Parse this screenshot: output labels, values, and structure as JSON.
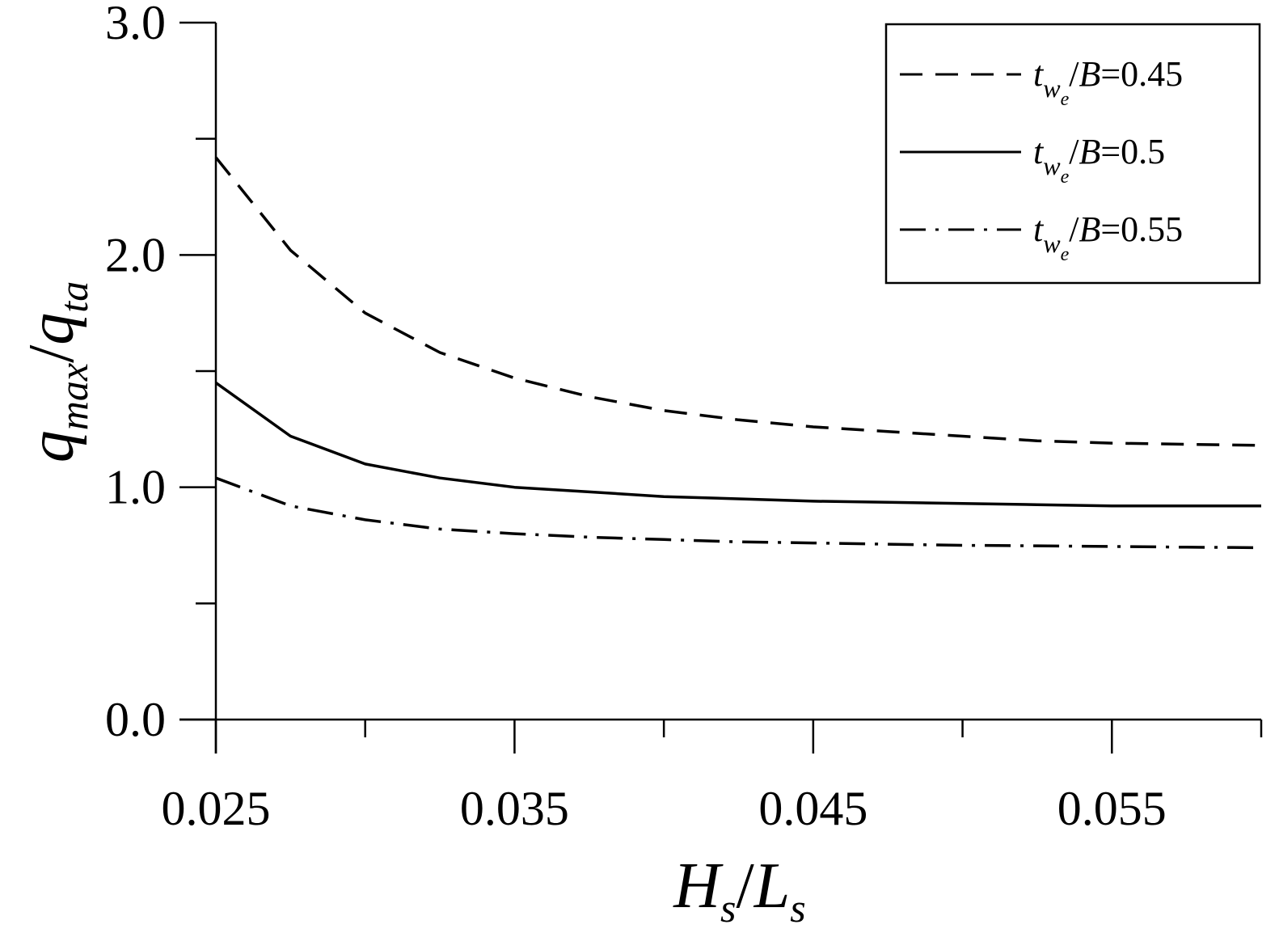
{
  "chart_data": {
    "type": "line",
    "title": "",
    "xlabel": {
      "main": "H",
      "sub1": "s",
      "slash": "/",
      "main2": "L",
      "sub2": "s"
    },
    "ylabel": {
      "main": "q",
      "sub1": "max",
      "slash": "/",
      "main2": "q",
      "sub2": "ta"
    },
    "xlim": [
      0.025,
      0.06
    ],
    "ylim": [
      0.0,
      3.0
    ],
    "x_major_ticks": [
      0.025,
      0.035,
      0.045,
      0.055
    ],
    "x_minor_ticks": [
      0.03,
      0.04,
      0.05,
      0.06
    ],
    "x_tick_labels": [
      "0.025",
      "0.035",
      "0.045",
      "0.055"
    ],
    "y_major_ticks": [
      0.0,
      1.0,
      2.0,
      3.0
    ],
    "y_minor_ticks": [
      0.5,
      1.5,
      2.5
    ],
    "y_tick_labels": [
      "0.0",
      "1.0",
      "2.0",
      "3.0"
    ],
    "grid": false,
    "legend_position": "top-right",
    "x": [
      0.025,
      0.0275,
      0.03,
      0.0325,
      0.035,
      0.0375,
      0.04,
      0.0425,
      0.045,
      0.0475,
      0.05,
      0.0525,
      0.055,
      0.0575,
      0.06
    ],
    "series": [
      {
        "legend": {
          "t": "t",
          "w": "w",
          "e": "e",
          "slash": "/",
          "B": "B",
          "value": "=0.45"
        },
        "style": "dashed",
        "values": [
          2.42,
          2.02,
          1.75,
          1.58,
          1.47,
          1.39,
          1.33,
          1.29,
          1.26,
          1.24,
          1.22,
          1.2,
          1.19,
          1.185,
          1.18
        ]
      },
      {
        "legend": {
          "t": "t",
          "w": "w",
          "e": "e",
          "slash": "/",
          "B": "B",
          "value": "=0.5"
        },
        "style": "solid",
        "values": [
          1.45,
          1.22,
          1.1,
          1.04,
          1.0,
          0.98,
          0.96,
          0.95,
          0.94,
          0.935,
          0.93,
          0.925,
          0.92,
          0.92,
          0.92
        ]
      },
      {
        "legend": {
          "t": "t",
          "w": "w",
          "e": "e",
          "slash": "/",
          "B": "B",
          "value": "=0.55"
        },
        "style": "dashdot",
        "values": [
          1.04,
          0.92,
          0.86,
          0.82,
          0.8,
          0.785,
          0.775,
          0.765,
          0.76,
          0.755,
          0.75,
          0.748,
          0.745,
          0.742,
          0.74
        ]
      }
    ],
    "colors": {
      "line": "#000000",
      "background": "#ffffff"
    }
  }
}
